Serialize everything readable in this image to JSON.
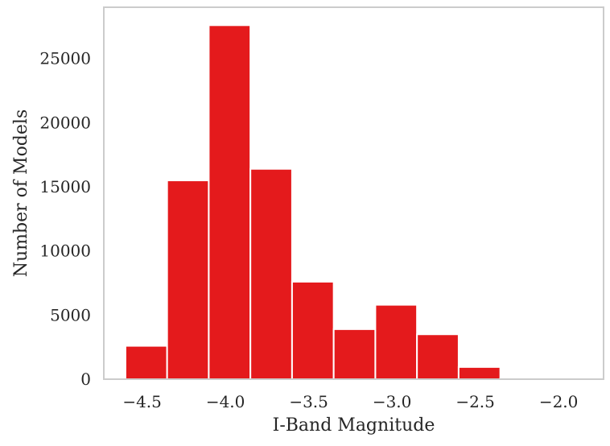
{
  "chart_data": {
    "type": "bar",
    "title": "",
    "xlabel": "I-Band Magnitude",
    "ylabel": "Number of Models",
    "xlim": [
      -4.73,
      -1.73
    ],
    "ylim": [
      0,
      29000
    ],
    "grid": false,
    "legend": "none",
    "bar_color": "#e41a1c",
    "bar_edge_color": "#ffffff",
    "frame_color": "#cccccc",
    "bins": [
      {
        "x0": -4.6,
        "x1": -4.35,
        "value": 2600
      },
      {
        "x0": -4.35,
        "x1": -4.1,
        "value": 15500
      },
      {
        "x0": -4.1,
        "x1": -3.85,
        "value": 27600
      },
      {
        "x0": -3.85,
        "x1": -3.6,
        "value": 16400
      },
      {
        "x0": -3.6,
        "x1": -3.35,
        "value": 7600
      },
      {
        "x0": -3.35,
        "x1": -3.1,
        "value": 3900
      },
      {
        "x0": -3.1,
        "x1": -2.85,
        "value": 5800
      },
      {
        "x0": -2.85,
        "x1": -2.6,
        "value": 3500
      },
      {
        "x0": -2.6,
        "x1": -2.35,
        "value": 950
      },
      {
        "x0": -2.35,
        "x1": -2.1,
        "value": 50
      }
    ],
    "x_ticks": [
      {
        "value": -4.5,
        "label": "−4.5"
      },
      {
        "value": -4.0,
        "label": "−4.0"
      },
      {
        "value": -3.5,
        "label": "−3.5"
      },
      {
        "value": -3.0,
        "label": "−3.0"
      },
      {
        "value": -2.5,
        "label": "−2.5"
      },
      {
        "value": -2.0,
        "label": "−2.0"
      }
    ],
    "y_ticks": [
      {
        "value": 0,
        "label": "0"
      },
      {
        "value": 5000,
        "label": "5000"
      },
      {
        "value": 10000,
        "label": "10000"
      },
      {
        "value": 15000,
        "label": "15000"
      },
      {
        "value": 20000,
        "label": "20000"
      },
      {
        "value": 25000,
        "label": "25000"
      }
    ]
  }
}
